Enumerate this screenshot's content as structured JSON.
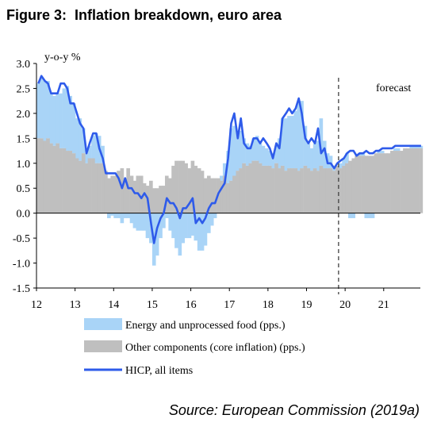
{
  "figure": {
    "number": "Figure 3:",
    "title": "Inflation breakdown, euro area",
    "source": "Source: European Commission (2019a)"
  },
  "chart_data": {
    "type": "area",
    "ylabel": "y-o-y %",
    "ylim": [
      -1.5,
      3.0
    ],
    "yticks": [
      "3.0",
      "2.5",
      "2.0",
      "1.5",
      "1.0",
      "0.5",
      "0.0",
      "-0.5",
      "-1.0",
      "-1.5"
    ],
    "xlim": [
      2012.0,
      2021.95
    ],
    "xticks": [
      "12",
      "13",
      "14",
      "15",
      "16",
      "17",
      "18",
      "19",
      "20",
      "21"
    ],
    "forecast_start": 2019.83,
    "annotation": "forecast",
    "grid": false,
    "legend_position": "bottom",
    "colors": {
      "energy": "#a9d4f7",
      "core": "#bfbfbf",
      "hicp": "#2e5bea",
      "forecast_line": "#404040"
    },
    "series": [
      {
        "name": "Energy and unprocessed food (pps.)",
        "kind": "bars",
        "x": [
          2012.0,
          2012.08,
          2012.17,
          2012.25,
          2012.33,
          2012.42,
          2012.5,
          2012.58,
          2012.67,
          2012.75,
          2012.83,
          2012.92,
          2013.0,
          2013.08,
          2013.17,
          2013.25,
          2013.33,
          2013.42,
          2013.5,
          2013.58,
          2013.67,
          2013.75,
          2013.83,
          2013.92,
          2014.0,
          2014.08,
          2014.17,
          2014.25,
          2014.33,
          2014.42,
          2014.5,
          2014.58,
          2014.67,
          2014.75,
          2014.83,
          2014.92,
          2015.0,
          2015.08,
          2015.17,
          2015.25,
          2015.33,
          2015.42,
          2015.5,
          2015.58,
          2015.67,
          2015.75,
          2015.83,
          2015.92,
          2016.0,
          2016.08,
          2016.17,
          2016.25,
          2016.33,
          2016.42,
          2016.5,
          2016.58,
          2016.67,
          2016.75,
          2016.83,
          2016.92,
          2017.0,
          2017.08,
          2017.17,
          2017.25,
          2017.33,
          2017.42,
          2017.5,
          2017.58,
          2017.67,
          2017.75,
          2017.83,
          2017.92,
          2018.0,
          2018.08,
          2018.17,
          2018.25,
          2018.33,
          2018.42,
          2018.5,
          2018.58,
          2018.67,
          2018.75,
          2018.83,
          2018.92,
          2019.0,
          2019.08,
          2019.17,
          2019.25,
          2019.33,
          2019.42,
          2019.5,
          2019.58,
          2019.67,
          2019.75,
          2019.83,
          2019.92,
          2020.0,
          2020.08,
          2020.17,
          2020.25,
          2020.33,
          2020.42,
          2020.5,
          2020.58,
          2020.67,
          2020.75,
          2020.83,
          2020.92,
          2021.0,
          2021.08,
          2021.17,
          2021.25,
          2021.33,
          2021.42,
          2021.5,
          2021.58,
          2021.67,
          2021.75,
          2021.83,
          2021.92
        ],
        "values": [
          1.1,
          1.2,
          1.2,
          1.15,
          1.0,
          1.0,
          1.0,
          1.1,
          1.2,
          1.3,
          1.1,
          1.0,
          0.8,
          0.85,
          0.5,
          0.2,
          0.25,
          0.45,
          0.6,
          0.55,
          0.35,
          0.0,
          -0.1,
          -0.05,
          -0.1,
          -0.1,
          -0.2,
          -0.1,
          -0.1,
          -0.2,
          -0.3,
          -0.35,
          -0.35,
          -0.35,
          -0.5,
          -0.6,
          -1.05,
          -0.85,
          -0.5,
          -0.3,
          -0.1,
          -0.35,
          -0.5,
          -0.7,
          -0.85,
          -0.6,
          -0.5,
          -0.5,
          -0.45,
          -0.55,
          -0.75,
          -0.75,
          -0.65,
          -0.4,
          -0.25,
          -0.1,
          0.0,
          0.1,
          0.25,
          0.65,
          1.05,
          1.0,
          0.75,
          0.75,
          0.5,
          0.45,
          0.35,
          0.45,
          0.5,
          0.4,
          0.4,
          0.35,
          0.3,
          0.3,
          0.35,
          0.6,
          0.95,
          1.05,
          1.05,
          1.05,
          1.15,
          1.35,
          1.35,
          0.8,
          0.5,
          0.45,
          0.5,
          0.6,
          0.95,
          0.55,
          0.3,
          0.25,
          0.05,
          0.0,
          0.1,
          0.15,
          0.2,
          -0.1,
          -0.1,
          0.0,
          0.05,
          0.05,
          -0.1,
          -0.1,
          -0.1,
          0.0,
          0.05,
          0.05,
          0.0,
          0.0,
          0.0,
          0.05,
          0.05,
          0.0,
          0.0,
          0.0,
          0.05,
          0.05,
          0.05,
          0.05
        ]
      },
      {
        "name": "Other components (core inflation) (pps.)",
        "kind": "bars",
        "x": [
          2012.0,
          2012.08,
          2012.17,
          2012.25,
          2012.33,
          2012.42,
          2012.5,
          2012.58,
          2012.67,
          2012.75,
          2012.83,
          2012.92,
          2013.0,
          2013.08,
          2013.17,
          2013.25,
          2013.33,
          2013.42,
          2013.5,
          2013.58,
          2013.67,
          2013.75,
          2013.83,
          2013.92,
          2014.0,
          2014.08,
          2014.17,
          2014.25,
          2014.33,
          2014.42,
          2014.5,
          2014.58,
          2014.67,
          2014.75,
          2014.83,
          2014.92,
          2015.0,
          2015.08,
          2015.17,
          2015.25,
          2015.33,
          2015.42,
          2015.5,
          2015.58,
          2015.67,
          2015.75,
          2015.83,
          2015.92,
          2016.0,
          2016.08,
          2016.17,
          2016.25,
          2016.33,
          2016.42,
          2016.5,
          2016.58,
          2016.67,
          2016.75,
          2016.83,
          2016.92,
          2017.0,
          2017.08,
          2017.17,
          2017.25,
          2017.33,
          2017.42,
          2017.5,
          2017.58,
          2017.67,
          2017.75,
          2017.83,
          2017.92,
          2018.0,
          2018.08,
          2018.17,
          2018.25,
          2018.33,
          2018.42,
          2018.5,
          2018.58,
          2018.67,
          2018.75,
          2018.83,
          2018.92,
          2019.0,
          2019.08,
          2019.17,
          2019.25,
          2019.33,
          2019.42,
          2019.5,
          2019.58,
          2019.67,
          2019.75,
          2019.83,
          2019.92,
          2020.0,
          2020.08,
          2020.17,
          2020.25,
          2020.33,
          2020.42,
          2020.5,
          2020.58,
          2020.67,
          2020.75,
          2020.83,
          2020.92,
          2021.0,
          2021.08,
          2021.17,
          2021.25,
          2021.33,
          2021.42,
          2021.5,
          2021.58,
          2021.67,
          2021.75,
          2021.83,
          2021.92
        ],
        "values": [
          1.5,
          1.5,
          1.45,
          1.5,
          1.4,
          1.35,
          1.4,
          1.3,
          1.3,
          1.25,
          1.25,
          1.2,
          1.1,
          1.05,
          1.2,
          1.0,
          1.1,
          1.1,
          1.0,
          1.0,
          1.0,
          0.85,
          0.7,
          0.75,
          0.75,
          0.85,
          0.9,
          0.7,
          0.9,
          0.75,
          0.65,
          0.75,
          0.75,
          0.6,
          0.55,
          0.65,
          0.5,
          0.5,
          0.55,
          0.55,
          0.75,
          0.7,
          0.95,
          1.05,
          1.05,
          1.05,
          1.0,
          0.9,
          1.05,
          0.95,
          0.9,
          0.85,
          0.7,
          0.75,
          0.7,
          0.7,
          0.7,
          0.65,
          0.75,
          0.6,
          0.65,
          0.75,
          0.85,
          0.9,
          1.0,
          0.95,
          1.0,
          1.05,
          1.05,
          1.0,
          0.95,
          0.95,
          0.95,
          0.9,
          1.0,
          0.9,
          0.95,
          0.85,
          0.9,
          0.9,
          0.9,
          0.85,
          0.9,
          0.95,
          0.9,
          0.85,
          0.9,
          0.85,
          0.95,
          0.9,
          0.9,
          0.9,
          0.85,
          0.95,
          0.9,
          0.95,
          1.0,
          1.05,
          1.1,
          1.15,
          1.15,
          1.15,
          1.15,
          1.15,
          1.15,
          1.2,
          1.2,
          1.2,
          1.2,
          1.2,
          1.25,
          1.25,
          1.25,
          1.25,
          1.3,
          1.3,
          1.3,
          1.3,
          1.3,
          1.3
        ]
      },
      {
        "name": "HICP, all items",
        "kind": "line",
        "x": [
          2012.0,
          2012.08,
          2012.17,
          2012.25,
          2012.33,
          2012.42,
          2012.5,
          2012.58,
          2012.67,
          2012.75,
          2012.83,
          2012.92,
          2013.0,
          2013.08,
          2013.17,
          2013.25,
          2013.33,
          2013.42,
          2013.5,
          2013.58,
          2013.67,
          2013.75,
          2013.83,
          2013.92,
          2014.0,
          2014.08,
          2014.17,
          2014.25,
          2014.33,
          2014.42,
          2014.5,
          2014.58,
          2014.67,
          2014.75,
          2014.83,
          2014.92,
          2015.0,
          2015.08,
          2015.17,
          2015.25,
          2015.33,
          2015.42,
          2015.5,
          2015.58,
          2015.67,
          2015.75,
          2015.83,
          2015.92,
          2016.0,
          2016.08,
          2016.17,
          2016.25,
          2016.33,
          2016.42,
          2016.5,
          2016.58,
          2016.67,
          2016.75,
          2016.83,
          2016.92,
          2017.0,
          2017.08,
          2017.17,
          2017.25,
          2017.33,
          2017.42,
          2017.5,
          2017.58,
          2017.67,
          2017.75,
          2017.83,
          2017.92,
          2018.0,
          2018.08,
          2018.17,
          2018.25,
          2018.33,
          2018.42,
          2018.5,
          2018.58,
          2018.67,
          2018.75,
          2018.83,
          2018.92,
          2019.0,
          2019.08,
          2019.17,
          2019.25,
          2019.33,
          2019.42,
          2019.5,
          2019.58,
          2019.67,
          2019.75,
          2019.83,
          2019.92,
          2020.0,
          2020.08,
          2020.17,
          2020.25,
          2020.33,
          2020.42,
          2020.5,
          2020.58,
          2020.67,
          2020.75,
          2020.83,
          2020.92,
          2021.0,
          2021.08,
          2021.17,
          2021.25,
          2021.33,
          2021.42,
          2021.5,
          2021.58,
          2021.67,
          2021.75,
          2021.83,
          2021.92
        ],
        "values": [
          2.6,
          2.75,
          2.65,
          2.6,
          2.4,
          2.4,
          2.4,
          2.6,
          2.6,
          2.5,
          2.2,
          2.2,
          2.0,
          1.8,
          1.7,
          1.2,
          1.4,
          1.6,
          1.6,
          1.3,
          1.1,
          0.8,
          0.8,
          0.8,
          0.8,
          0.7,
          0.5,
          0.7,
          0.5,
          0.5,
          0.4,
          0.4,
          0.3,
          0.4,
          0.3,
          -0.2,
          -0.6,
          -0.3,
          -0.1,
          0.0,
          0.3,
          0.2,
          0.2,
          0.1,
          -0.1,
          0.1,
          0.1,
          0.2,
          0.3,
          -0.2,
          -0.1,
          -0.2,
          -0.1,
          0.1,
          0.2,
          0.2,
          0.4,
          0.5,
          0.6,
          1.1,
          1.8,
          2.0,
          1.5,
          1.9,
          1.4,
          1.3,
          1.3,
          1.5,
          1.5,
          1.4,
          1.5,
          1.4,
          1.3,
          1.1,
          1.4,
          1.3,
          1.9,
          2.0,
          2.1,
          2.0,
          2.1,
          2.3,
          2.0,
          1.5,
          1.4,
          1.5,
          1.4,
          1.7,
          1.2,
          1.3,
          1.0,
          1.0,
          0.9,
          1.0,
          1.05,
          1.1,
          1.2,
          1.25,
          1.25,
          1.15,
          1.2,
          1.2,
          1.25,
          1.2,
          1.2,
          1.25,
          1.25,
          1.3,
          1.3,
          1.3,
          1.3,
          1.35,
          1.35,
          1.35,
          1.35,
          1.35,
          1.35,
          1.35,
          1.35,
          1.35
        ]
      }
    ]
  }
}
